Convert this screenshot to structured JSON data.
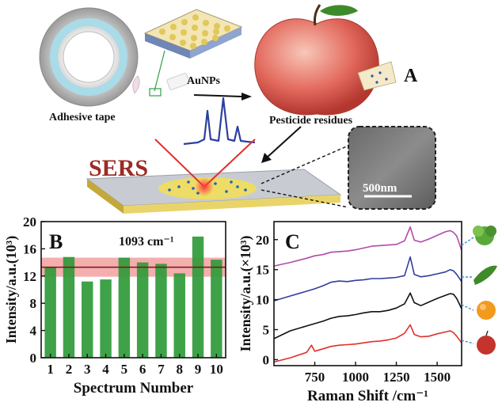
{
  "panel_a": {
    "panel_label": "A",
    "adhesive_tape_label": "Adhesive tape",
    "aunps_label": "AuNPs",
    "pesticide_label": "Pesticide residues",
    "sers_label": "SERS",
    "scale_bar_label": "500nm",
    "colors": {
      "sers_text": "#9b2b24",
      "spectrum_line": "#2c3fa0",
      "laser": "#e0302c",
      "substrate": "#e9d46a"
    }
  },
  "chart_data": [
    {
      "panel_label": "B",
      "type": "bar",
      "annotation": "1093 cm⁻¹",
      "categories": [
        "1",
        "2",
        "3",
        "4",
        "5",
        "6",
        "7",
        "8",
        "9",
        "10"
      ],
      "values": [
        13.3,
        14.8,
        11.2,
        11.5,
        14.7,
        14.0,
        13.8,
        12.4,
        17.8,
        14.4
      ],
      "reference_line": 13.3,
      "reference_band": [
        11.9,
        14.7
      ],
      "xlabel": "Spectrum Number",
      "ylabel": "Intensity/a.u.(10³)",
      "ylim": [
        0,
        20
      ],
      "yticks": [
        0,
        4,
        8,
        12,
        16,
        20
      ],
      "colors": {
        "bar": "#2f9a3a",
        "band": "#f2a0a0",
        "line": "#7a1515"
      }
    },
    {
      "panel_label": "C",
      "type": "line",
      "xlabel": "Raman Shift /cm⁻¹",
      "ylabel": "Intensity/a.u.(×10³)",
      "xlim": [
        500,
        1650
      ],
      "ylim": [
        -1,
        23
      ],
      "xticks": [
        750,
        1000,
        1250,
        1500
      ],
      "yticks": [
        0,
        5,
        10,
        15,
        20
      ],
      "series": [
        {
          "color": "#b24aa8",
          "x": [
            500,
            600,
            700,
            750,
            800,
            850,
            900,
            950,
            1000,
            1050,
            1100,
            1150,
            1200,
            1250,
            1300,
            1335,
            1360,
            1400,
            1450,
            1500,
            1550,
            1580,
            1600,
            1620,
            1650
          ],
          "y": [
            15.6,
            16.2,
            16.9,
            17.3,
            17.5,
            17.9,
            18.0,
            18.1,
            18.3,
            18.6,
            18.9,
            19.0,
            19.1,
            19.2,
            19.8,
            22.1,
            19.9,
            19.6,
            20.1,
            20.7,
            21.3,
            21.5,
            21.2,
            20.6,
            18.2
          ]
        },
        {
          "color": "#2f3e9e",
          "x": [
            500,
            600,
            700,
            750,
            800,
            850,
            900,
            950,
            1000,
            1050,
            1100,
            1150,
            1200,
            1250,
            1300,
            1335,
            1360,
            1400,
            1450,
            1500,
            1550,
            1580,
            1600,
            1620,
            1650
          ],
          "y": [
            9.8,
            10.6,
            11.4,
            11.8,
            12.3,
            12.9,
            13.1,
            13.0,
            13.2,
            13.3,
            13.5,
            13.5,
            13.6,
            13.7,
            14.0,
            17.1,
            14.2,
            13.8,
            14.0,
            14.3,
            14.6,
            15.0,
            14.8,
            14.2,
            13.0
          ]
        },
        {
          "color": "#111111",
          "x": [
            500,
            600,
            700,
            750,
            800,
            850,
            900,
            950,
            1000,
            1050,
            1100,
            1150,
            1200,
            1250,
            1300,
            1335,
            1360,
            1400,
            1450,
            1500,
            1550,
            1580,
            1600,
            1620,
            1650
          ],
          "y": [
            3.5,
            4.8,
            5.6,
            6.0,
            6.4,
            6.9,
            7.2,
            7.3,
            7.5,
            7.8,
            8.0,
            8.0,
            8.2,
            8.6,
            9.3,
            11.1,
            9.5,
            9.0,
            9.6,
            10.2,
            10.7,
            11.0,
            10.9,
            10.2,
            8.5
          ]
        },
        {
          "color": "#e0302c",
          "x": [
            500,
            600,
            700,
            730,
            750,
            800,
            850,
            900,
            950,
            1000,
            1050,
            1100,
            1150,
            1200,
            1250,
            1300,
            1335,
            1360,
            1400,
            1450,
            1500,
            1550,
            1580,
            1600,
            1620,
            1650
          ],
          "y": [
            -0.4,
            0.3,
            1.2,
            2.4,
            1.4,
            1.8,
            2.2,
            2.4,
            2.5,
            2.6,
            2.8,
            3.0,
            3.1,
            3.3,
            3.6,
            4.4,
            5.8,
            4.2,
            3.8,
            3.9,
            4.3,
            4.6,
            4.8,
            4.5,
            3.9,
            2.8
          ]
        }
      ],
      "icons": [
        "vegetable-icon",
        "pepper-icon",
        "orange-icon",
        "apple-icon"
      ]
    }
  ]
}
